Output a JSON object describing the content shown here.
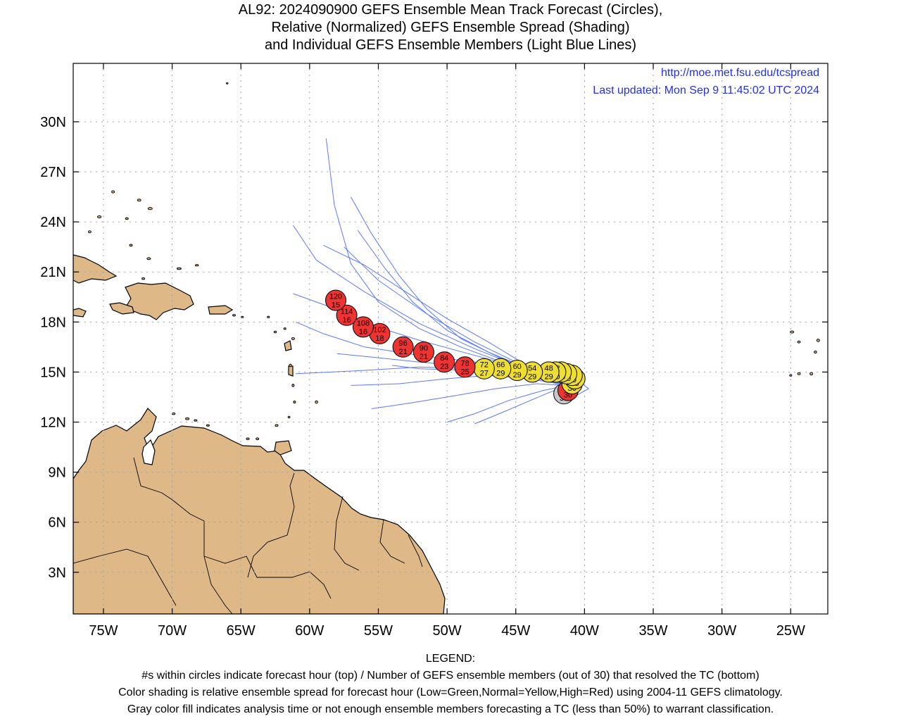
{
  "title": {
    "line1": "AL92: 2024090900 GEFS Ensemble Mean Track Forecast (Circles),",
    "line2": "Relative (Normalized) GEFS Ensemble Spread (Shading)",
    "line3": "and Individual GEFS Ensemble Members (Light Blue Lines)"
  },
  "source": {
    "url": "http://moe.met.fsu.edu/tcspread",
    "updated": "Last updated: Mon Sep 9 11:45:02 UTC 2024"
  },
  "axes": {
    "lon_min": -77.2,
    "lon_max": -22.3,
    "lat_min": 0.5,
    "lat_max": 33.5,
    "lon_ticks": [
      {
        "v": -75,
        "label": "75W"
      },
      {
        "v": -70,
        "label": "70W"
      },
      {
        "v": -65,
        "label": "65W"
      },
      {
        "v": -60,
        "label": "60W"
      },
      {
        "v": -55,
        "label": "55W"
      },
      {
        "v": -50,
        "label": "50W"
      },
      {
        "v": -45,
        "label": "45W"
      },
      {
        "v": -40,
        "label": "40W"
      },
      {
        "v": -35,
        "label": "35W"
      },
      {
        "v": -30,
        "label": "30W"
      },
      {
        "v": -25,
        "label": "25W"
      }
    ],
    "lat_ticks": [
      {
        "v": 3,
        "label": "3N"
      },
      {
        "v": 6,
        "label": "6N"
      },
      {
        "v": 9,
        "label": "9N"
      },
      {
        "v": 12,
        "label": "12N"
      },
      {
        "v": 15,
        "label": "15N"
      },
      {
        "v": 18,
        "label": "18N"
      },
      {
        "v": 21,
        "label": "21N"
      },
      {
        "v": 24,
        "label": "24N"
      },
      {
        "v": 27,
        "label": "27N"
      },
      {
        "v": 30,
        "label": "30N"
      }
    ]
  },
  "colors": {
    "land": "#deb887",
    "ocean": "#ffffff",
    "grid": "#a0a0a0",
    "members": "#5a78ff",
    "spread_high": "#ee3333",
    "spread_normal": "#eedd33",
    "analysis": "#c8c8c8",
    "link": "#2233dd"
  },
  "chart_data": {
    "type": "map-track",
    "mean_track": [
      {
        "hour": 0,
        "members": 30,
        "lon": -41.5,
        "lat": 13.7,
        "spread": "gray"
      },
      {
        "hour": 6,
        "members": 30,
        "lon": -41.2,
        "lat": 13.9,
        "spread": "high"
      },
      {
        "hour": 12,
        "members": 30,
        "lon": -40.9,
        "lat": 14.3,
        "spread": "normal"
      },
      {
        "hour": 18,
        "members": 30,
        "lon": -40.7,
        "lat": 14.6,
        "spread": "normal"
      },
      {
        "hour": 24,
        "members": 30,
        "lon": -40.9,
        "lat": 14.8,
        "spread": "normal"
      },
      {
        "hour": 30,
        "members": 30,
        "lon": -41.3,
        "lat": 14.9,
        "spread": "normal"
      },
      {
        "hour": 36,
        "members": 30,
        "lon": -41.7,
        "lat": 15.0,
        "spread": "normal"
      },
      {
        "hour": 42,
        "members": 30,
        "lon": -42.1,
        "lat": 15.0,
        "spread": "normal"
      },
      {
        "hour": 48,
        "members": 29,
        "lon": -42.6,
        "lat": 15.0,
        "spread": "normal"
      },
      {
        "hour": 54,
        "members": 29,
        "lon": -43.8,
        "lat": 15.0,
        "spread": "normal"
      },
      {
        "hour": 60,
        "members": 29,
        "lon": -44.9,
        "lat": 15.1,
        "spread": "normal"
      },
      {
        "hour": 66,
        "members": 29,
        "lon": -46.1,
        "lat": 15.2,
        "spread": "normal"
      },
      {
        "hour": 72,
        "members": 27,
        "lon": -47.3,
        "lat": 15.2,
        "spread": "normal"
      },
      {
        "hour": 78,
        "members": 25,
        "lon": -48.7,
        "lat": 15.3,
        "spread": "high"
      },
      {
        "hour": 84,
        "members": 23,
        "lon": -50.2,
        "lat": 15.6,
        "spread": "high"
      },
      {
        "hour": 90,
        "members": 21,
        "lon": -51.7,
        "lat": 16.2,
        "spread": "high"
      },
      {
        "hour": 96,
        "members": 21,
        "lon": -53.2,
        "lat": 16.5,
        "spread": "high"
      },
      {
        "hour": 102,
        "members": 18,
        "lon": -54.9,
        "lat": 17.3,
        "spread": "high"
      },
      {
        "hour": 108,
        "members": 16,
        "lon": -56.1,
        "lat": 17.7,
        "spread": "high"
      },
      {
        "hour": 114,
        "members": 16,
        "lon": -57.3,
        "lat": 18.4,
        "spread": "high"
      },
      {
        "hour": 120,
        "members": 15,
        "lon": -58.1,
        "lat": 19.3,
        "spread": "high"
      }
    ],
    "ensemble_members": [
      [
        [
          -41.2,
          14.2
        ],
        [
          -43,
          14.8
        ],
        [
          -46,
          15.6
        ],
        [
          -49,
          16.5
        ],
        [
          -52,
          17.6
        ],
        [
          -55,
          19.2
        ],
        [
          -57,
          21.5
        ],
        [
          -58.2,
          25
        ],
        [
          -58.8,
          29
        ]
      ],
      [
        [
          -41.2,
          14.2
        ],
        [
          -43,
          14.9
        ],
        [
          -46,
          15.8
        ],
        [
          -49,
          17
        ],
        [
          -51.5,
          18.8
        ],
        [
          -53.5,
          20.8
        ],
        [
          -55.5,
          23.3
        ],
        [
          -57,
          25.5
        ]
      ],
      [
        [
          -41.2,
          14.2
        ],
        [
          -43.5,
          15
        ],
        [
          -47,
          16.2
        ],
        [
          -50,
          17.5
        ],
        [
          -52.5,
          19.2
        ],
        [
          -54.5,
          21.2
        ],
        [
          -56.5,
          23.5
        ]
      ],
      [
        [
          -41.2,
          14.2
        ],
        [
          -44,
          15.2
        ],
        [
          -48,
          16.8
        ],
        [
          -51.5,
          18.5
        ],
        [
          -55,
          20.5
        ],
        [
          -57.5,
          22.5
        ]
      ],
      [
        [
          -41.2,
          14.2
        ],
        [
          -44,
          15.1
        ],
        [
          -48,
          16.4
        ],
        [
          -52,
          17.9
        ],
        [
          -56,
          19.8
        ],
        [
          -59.5,
          21.7
        ],
        [
          -61.2,
          23.8
        ]
      ],
      [
        [
          -41.2,
          14.2
        ],
        [
          -44,
          15.1
        ],
        [
          -48,
          16
        ],
        [
          -52,
          16.9
        ],
        [
          -55.5,
          17.8
        ],
        [
          -58.5,
          18.9
        ],
        [
          -61.2,
          19.7
        ]
      ],
      [
        [
          -41.2,
          14.2
        ],
        [
          -44,
          14.9
        ],
        [
          -48,
          15.6
        ],
        [
          -52,
          16
        ],
        [
          -56,
          16.5
        ],
        [
          -59,
          17.3
        ],
        [
          -61,
          18
        ]
      ],
      [
        [
          -41.2,
          14.2
        ],
        [
          -44,
          14.8
        ],
        [
          -48,
          15.3
        ],
        [
          -52,
          15.6
        ],
        [
          -55.5,
          15.9
        ],
        [
          -58,
          16.1
        ]
      ],
      [
        [
          -41.2,
          14.2
        ],
        [
          -44,
          14.8
        ],
        [
          -48,
          15.2
        ],
        [
          -52,
          15.3
        ],
        [
          -56,
          15.1
        ],
        [
          -61,
          14.9
        ]
      ],
      [
        [
          -41.2,
          14.2
        ],
        [
          -44,
          14.6
        ],
        [
          -47,
          14.8
        ],
        [
          -50,
          14.6
        ],
        [
          -53.5,
          14.3
        ],
        [
          -57,
          14.2
        ]
      ],
      [
        [
          -41.2,
          14.2
        ],
        [
          -43.5,
          14.3
        ],
        [
          -46.5,
          14
        ],
        [
          -50,
          13.5
        ],
        [
          -53,
          13.1
        ],
        [
          -55.5,
          12.8
        ]
      ],
      [
        [
          -41.2,
          14.2
        ],
        [
          -43,
          13.9
        ],
        [
          -45.5,
          13.3
        ],
        [
          -48,
          12.5
        ],
        [
          -50,
          12
        ]
      ],
      [
        [
          -41.2,
          14.2
        ],
        [
          -42.5,
          13.8
        ],
        [
          -44.5,
          13.1
        ],
        [
          -46.5,
          12.4
        ],
        [
          -48,
          11.9
        ]
      ],
      [
        [
          -40.5,
          14.5
        ],
        [
          -39.7,
          14
        ],
        [
          -40.6,
          13.6
        ],
        [
          -42.2,
          13.4
        ]
      ],
      [
        [
          -41.2,
          14.2
        ],
        [
          -44,
          15.3
        ],
        [
          -47,
          16.8
        ],
        [
          -50,
          18.2
        ],
        [
          -53,
          19.8
        ],
        [
          -56,
          21.4
        ],
        [
          -59,
          22.6
        ]
      ],
      [
        [
          -41.2,
          14.2
        ],
        [
          -44,
          14.7
        ],
        [
          -48,
          15.1
        ],
        [
          -52,
          15.2
        ],
        [
          -54,
          15.4
        ]
      ]
    ]
  }
}
